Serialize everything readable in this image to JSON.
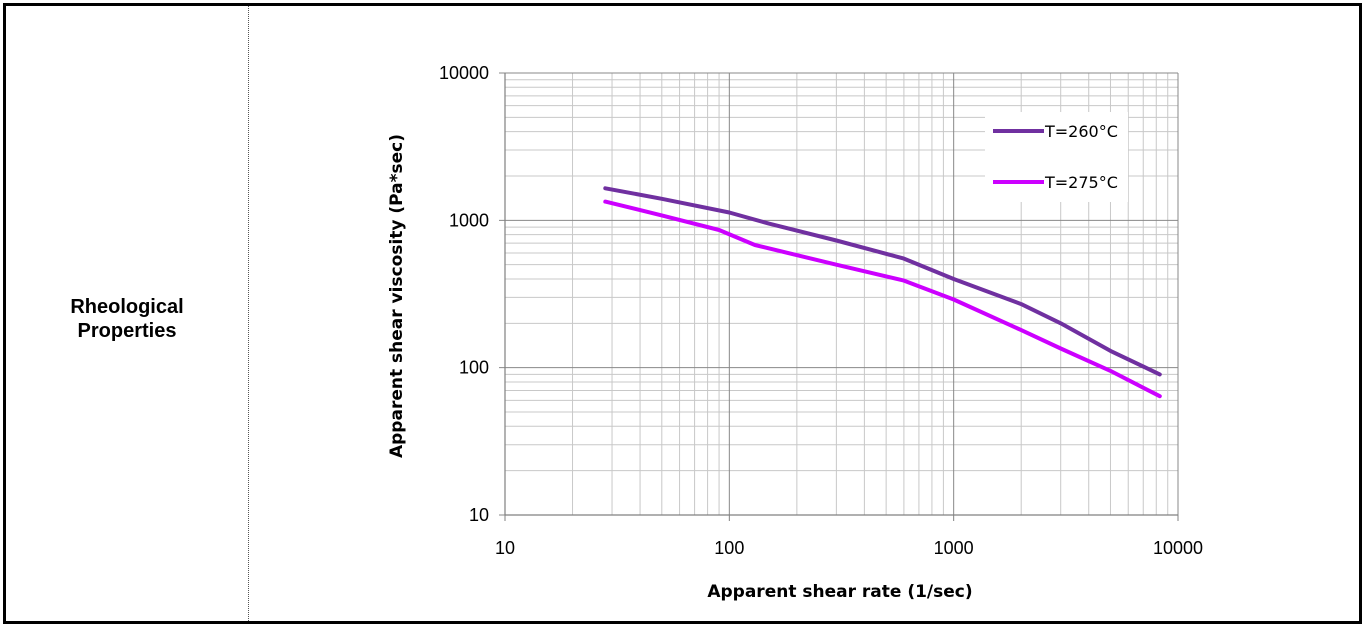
{
  "row": {
    "label_line1": "Rheological",
    "label_line2": "Properties"
  },
  "chart_data": {
    "type": "line",
    "xlabel": "Apparent shear rate (1/sec)",
    "ylabel": "Apparent shear viscosity (Pa*sec)",
    "xscale": "log",
    "yscale": "log",
    "xlim": [
      10,
      10000
    ],
    "ylim": [
      10,
      10000
    ],
    "xticks": [
      "10",
      "100",
      "1000",
      "10000"
    ],
    "yticks": [
      "10",
      "100",
      "1000",
      "10000"
    ],
    "grid": true,
    "legend_position": "top-right",
    "series": [
      {
        "name": "T=260°C",
        "color": "#7030A0",
        "x": [
          28,
          50,
          100,
          150,
          300,
          600,
          1000,
          2000,
          3000,
          5000,
          8300
        ],
        "y": [
          1650,
          1400,
          1130,
          950,
          730,
          550,
          400,
          270,
          200,
          130,
          90
        ]
      },
      {
        "name": "T=275°C",
        "color": "#CC00FF",
        "x": [
          28,
          50,
          90,
          130,
          300,
          600,
          1000,
          2000,
          3000,
          5000,
          8300
        ],
        "y": [
          1340,
          1080,
          860,
          680,
          500,
          390,
          290,
          180,
          135,
          95,
          64
        ]
      }
    ]
  }
}
